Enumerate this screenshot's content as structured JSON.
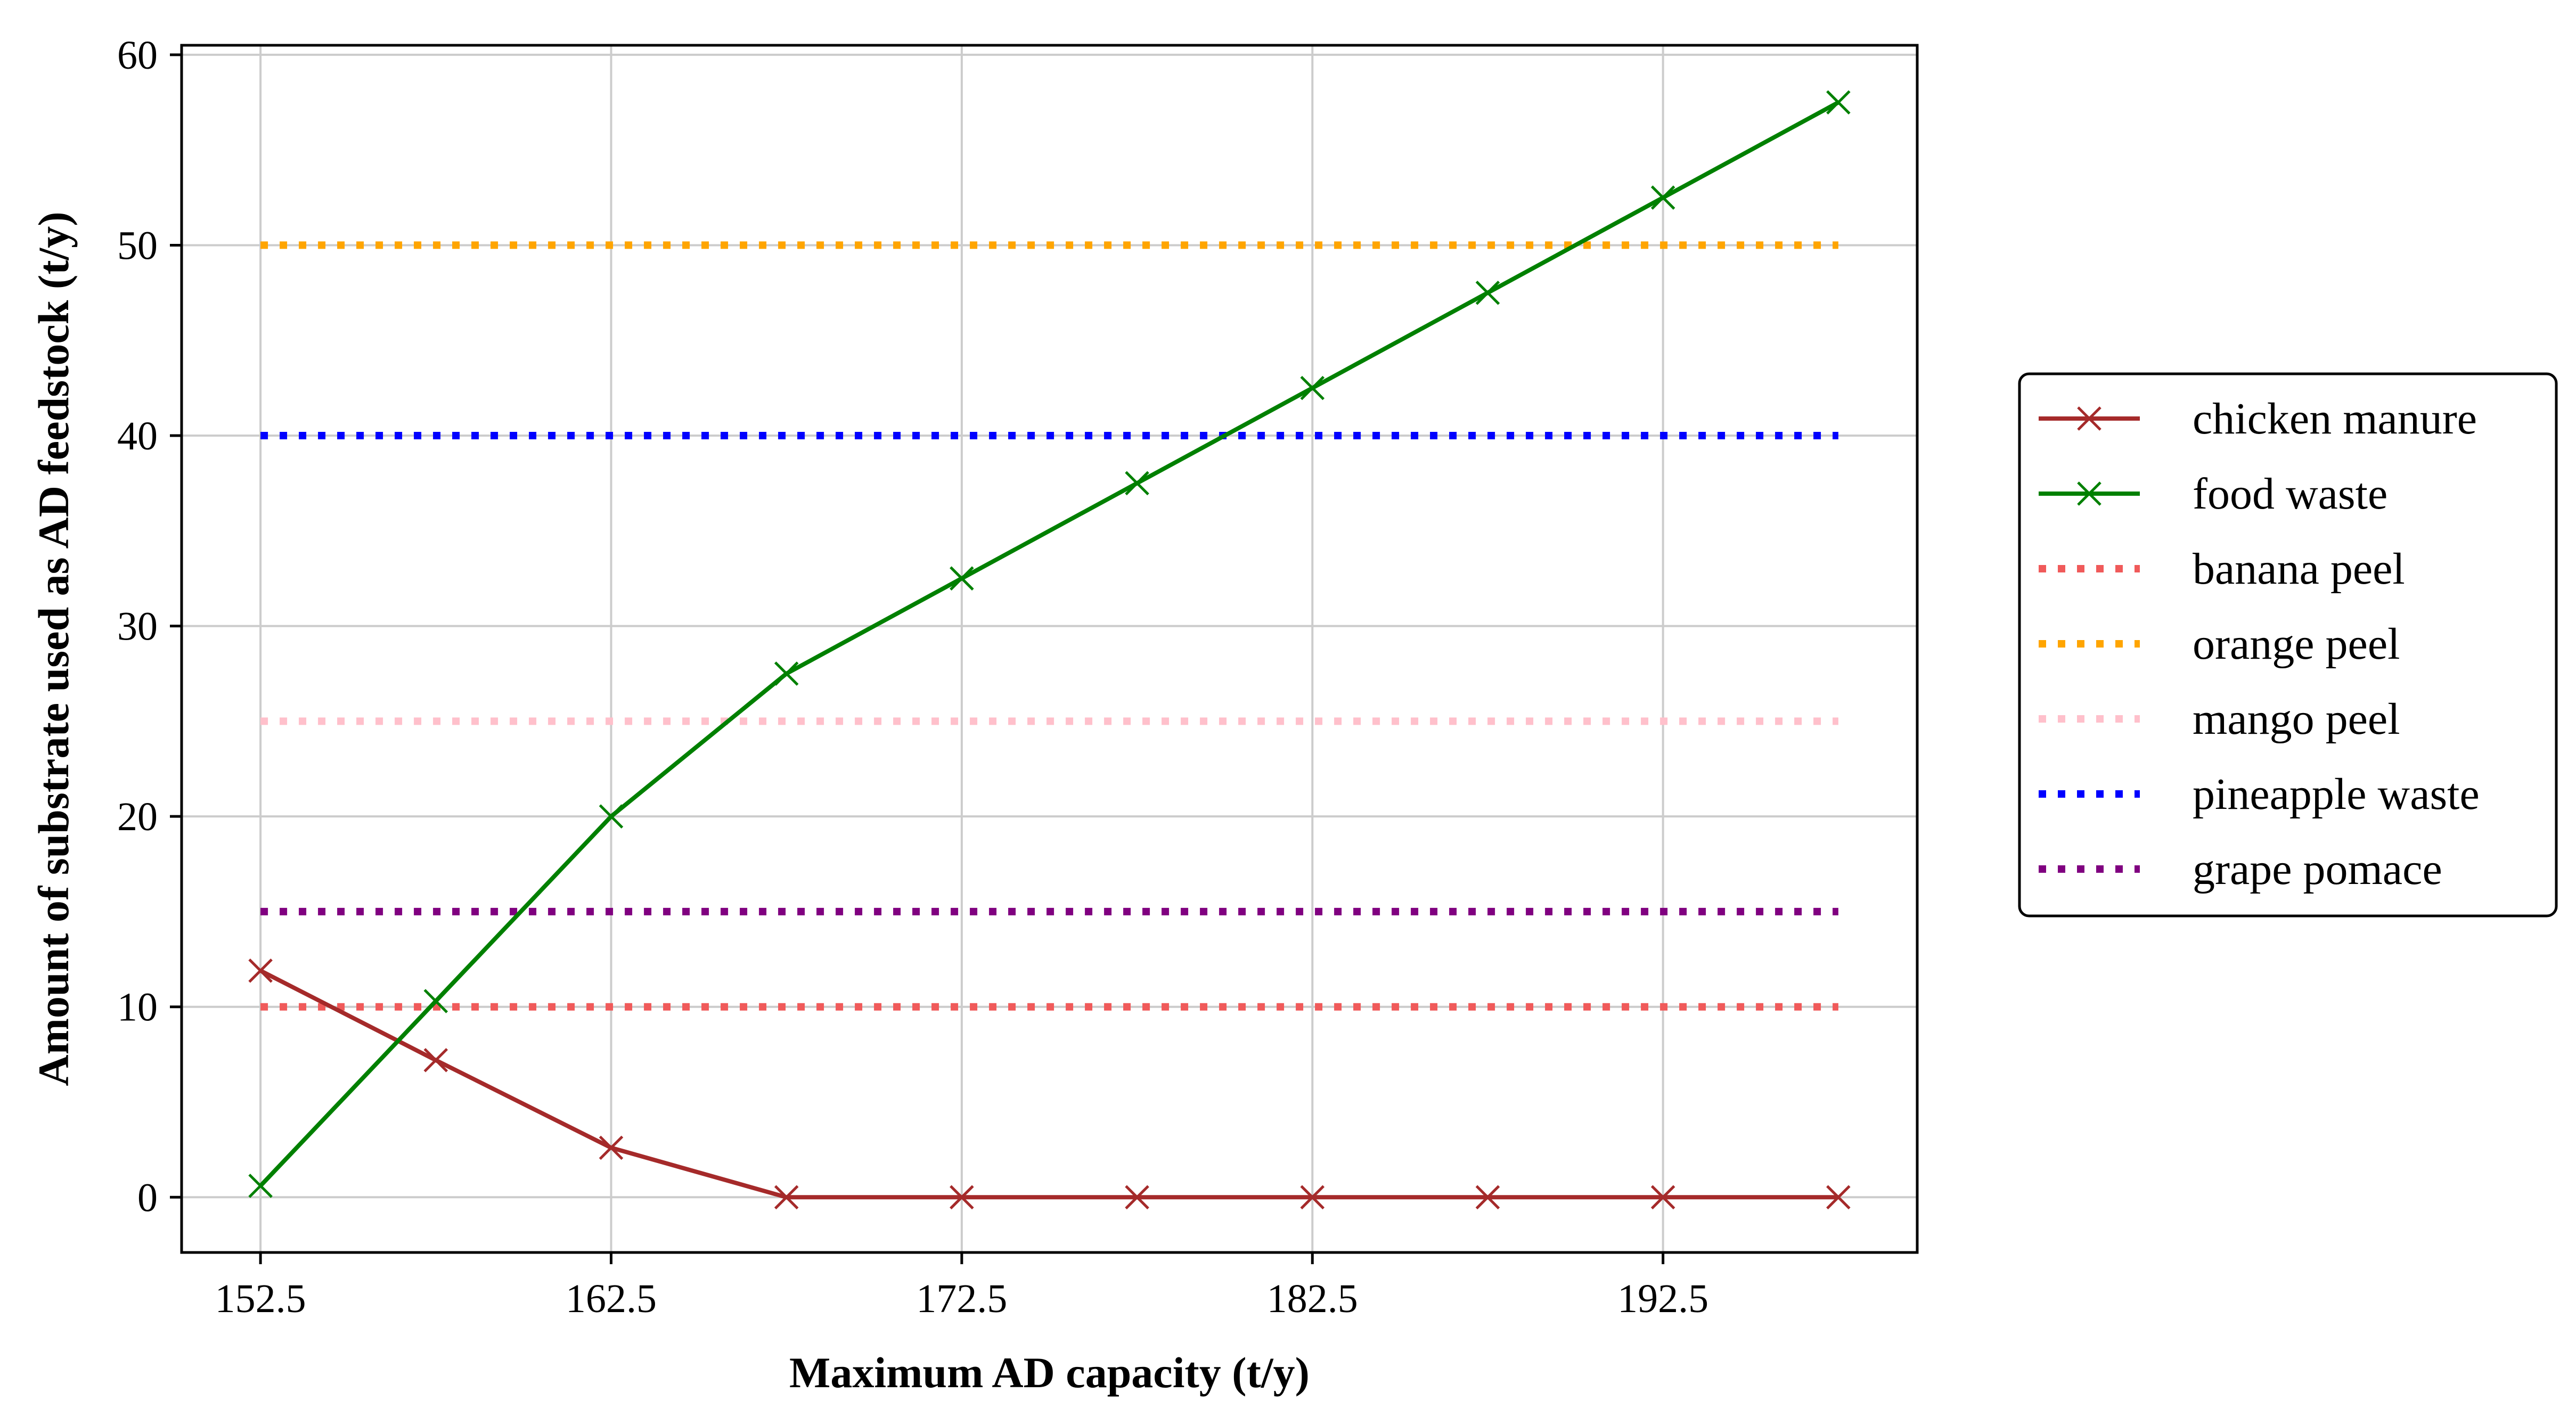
{
  "chart_data": {
    "type": "line",
    "xlabel": "Maximum AD capacity (t/y)",
    "ylabel": "Amount of substrate used as AD feedstock (t/y)",
    "xlim": [
      150.25,
      199.75
    ],
    "ylim": [
      -2.9,
      60.5
    ],
    "xticks": [
      "152.5",
      "162.5",
      "172.5",
      "182.5",
      "192.5"
    ],
    "yticks": [
      "0",
      "10",
      "20",
      "30",
      "40",
      "50",
      "60"
    ],
    "grid": true,
    "legend_position": "outside-right",
    "x": [
      152.5,
      157.5,
      162.5,
      167.5,
      172.5,
      177.5,
      182.5,
      187.5,
      192.5,
      197.5
    ],
    "series": [
      {
        "name": "chicken manure",
        "color": "#a52a2a",
        "style": "solid",
        "marker": "x",
        "values": [
          11.9,
          7.2,
          2.6,
          0,
          0,
          0,
          0,
          0,
          0,
          0
        ]
      },
      {
        "name": "food waste",
        "color": "#008000",
        "style": "solid",
        "marker": "x",
        "values": [
          0.6,
          10.3,
          20.0,
          27.5,
          32.5,
          37.5,
          42.5,
          47.5,
          52.5,
          57.5
        ]
      },
      {
        "name": "banana peel",
        "color": "#f05a5a",
        "style": "dotted",
        "marker": "none",
        "values": [
          10,
          10,
          10,
          10,
          10,
          10,
          10,
          10,
          10,
          10
        ]
      },
      {
        "name": "orange peel",
        "color": "#ffa500",
        "style": "dotted",
        "marker": "none",
        "values": [
          50,
          50,
          50,
          50,
          50,
          50,
          50,
          50,
          50,
          50
        ]
      },
      {
        "name": "mango peel",
        "color": "#ffc0cb",
        "style": "dotted",
        "marker": "none",
        "values": [
          25,
          25,
          25,
          25,
          25,
          25,
          25,
          25,
          25,
          25
        ]
      },
      {
        "name": "pineapple waste",
        "color": "#0000ff",
        "style": "dotted",
        "marker": "none",
        "values": [
          40,
          40,
          40,
          40,
          40,
          40,
          40,
          40,
          40,
          40
        ]
      },
      {
        "name": "grape pomace",
        "color": "#800080",
        "style": "dotted",
        "marker": "none",
        "values": [
          15,
          15,
          15,
          15,
          15,
          15,
          15,
          15,
          15,
          15
        ]
      }
    ]
  }
}
